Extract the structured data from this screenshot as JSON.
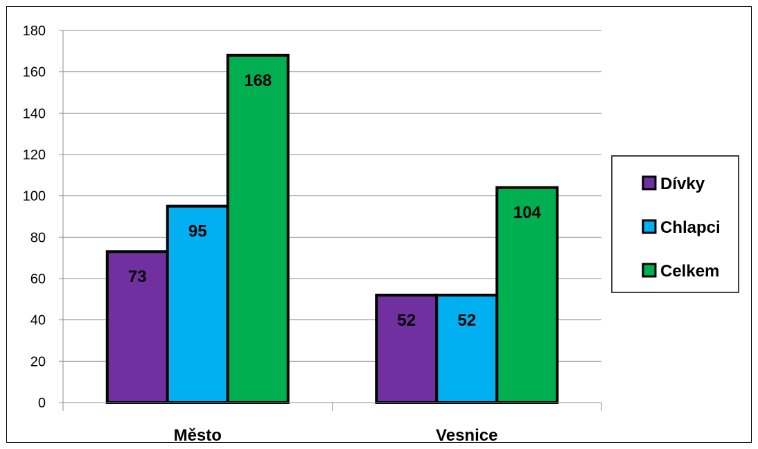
{
  "chart_data": {
    "type": "bar",
    "title": "",
    "xlabel": "",
    "ylabel": "",
    "categories": [
      "Město",
      "Vesnice"
    ],
    "series": [
      {
        "name": "Dívky",
        "values": [
          73,
          52
        ],
        "color": "#7030a0"
      },
      {
        "name": "Chlapci",
        "values": [
          95,
          52
        ],
        "color": "#00b0f0"
      },
      {
        "name": "Celkem",
        "values": [
          168,
          104
        ],
        "color": "#00b050"
      }
    ],
    "ylim": [
      0,
      180
    ],
    "yticks": [
      0,
      20,
      40,
      60,
      80,
      100,
      120,
      140,
      160,
      180
    ],
    "grid": true,
    "legend_position": "right",
    "data_labels": true
  }
}
